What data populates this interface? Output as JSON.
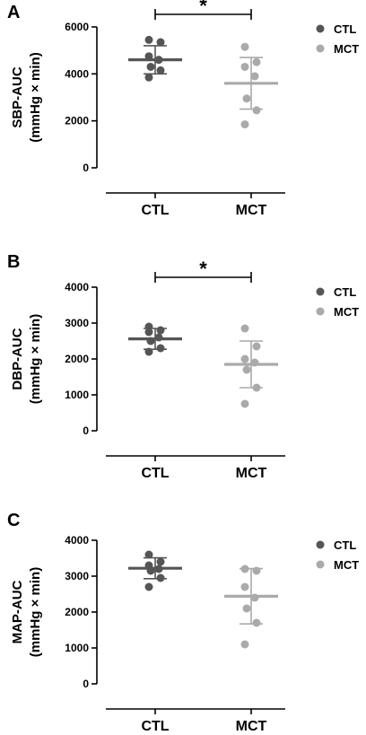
{
  "chart_data": [
    {
      "type": "scatter",
      "panel": "A",
      "ylabel_line1": "SBP-AUC",
      "ylabel_line2": "(mmHg × min)",
      "categories": [
        "CTL",
        "MCT"
      ],
      "ylim": [
        0,
        6000
      ],
      "yticks": [
        "0",
        "2000",
        "4000",
        "6000"
      ],
      "yticks_values": [
        0,
        2000,
        4000,
        6000
      ],
      "legend": [
        "CTL",
        "MCT"
      ],
      "colors": {
        "CTL": "#555555",
        "MCT": "#aaaaaa"
      },
      "significance": "*",
      "series": [
        {
          "name": "CTL",
          "points": [
            5450,
            5350,
            4750,
            4600,
            4300,
            4150,
            3850
          ],
          "mean": 4600,
          "sd": 600
        },
        {
          "name": "MCT",
          "points": [
            5150,
            4500,
            4300,
            3900,
            2950,
            2450,
            1850
          ],
          "mean": 3600,
          "sd": 1100
        }
      ]
    },
    {
      "type": "scatter",
      "panel": "B",
      "ylabel_line1": "DBP-AUC",
      "ylabel_line2": "(mmHg × min)",
      "categories": [
        "CTL",
        "MCT"
      ],
      "ylim": [
        0,
        4000
      ],
      "yticks": [
        "0",
        "1000",
        "2000",
        "3000",
        "4000"
      ],
      "yticks_values": [
        0,
        1000,
        2000,
        3000,
        4000
      ],
      "legend": [
        "CTL",
        "MCT"
      ],
      "colors": {
        "CTL": "#555555",
        "MCT": "#aaaaaa"
      },
      "significance": "*",
      "series": [
        {
          "name": "CTL",
          "points": [
            2900,
            2800,
            2750,
            2600,
            2500,
            2300,
            2200
          ],
          "mean": 2560,
          "sd": 290
        },
        {
          "name": "MCT",
          "points": [
            2850,
            2350,
            2000,
            1900,
            1700,
            1200,
            750
          ],
          "mean": 1850,
          "sd": 650
        }
      ]
    },
    {
      "type": "scatter",
      "panel": "C",
      "ylabel_line1": "MAP-AUC",
      "ylabel_line2": "(mmHg × min)",
      "categories": [
        "CTL",
        "MCT"
      ],
      "ylim": [
        0,
        4000
      ],
      "yticks": [
        "0",
        "1000",
        "2000",
        "3000",
        "4000"
      ],
      "yticks_values": [
        0,
        1000,
        2000,
        3000,
        4000
      ],
      "legend": [
        "CTL",
        "MCT"
      ],
      "colors": {
        "CTL": "#555555",
        "MCT": "#aaaaaa"
      },
      "significance": "",
      "series": [
        {
          "name": "CTL",
          "points": [
            3600,
            3400,
            3300,
            3200,
            3150,
            2950,
            2700
          ],
          "mean": 3220,
          "sd": 290
        },
        {
          "name": "MCT",
          "points": [
            3200,
            3150,
            2700,
            2400,
            2100,
            1700,
            1100
          ],
          "mean": 2440,
          "sd": 770
        }
      ]
    }
  ]
}
